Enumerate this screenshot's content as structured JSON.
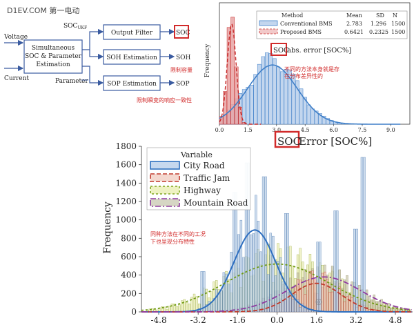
{
  "watermark": "D1EV.COM 第一电动",
  "block_diagram": {
    "inputs": [
      "Voltage",
      "Current"
    ],
    "estimator": [
      "Simultaneous",
      "SOC & Parameter",
      "Estimation"
    ],
    "soc_ukf_label": "SOC",
    "soc_ukf_sub": "UKF",
    "parameter_label": "Parameter",
    "blocks": [
      "Output Filter",
      "SOH Estimation",
      "SOP Estimation"
    ],
    "outputs": [
      "SOC",
      "SOH",
      "SOP"
    ],
    "notes": [
      "限制容量",
      "限制瞬变的响应一致性"
    ]
  },
  "top_chart": {
    "legend_headers": [
      "Method",
      "Mean",
      "SD",
      "N"
    ],
    "legend_rows": [
      {
        "name": "Conventional BMS",
        "mean": "2.783",
        "sd": "1.296",
        "n": "1500"
      },
      {
        "name": "Proposed BMS",
        "mean": "0.6421",
        "sd": "0.2325",
        "n": "1500"
      }
    ],
    "ylabel": "Frequency",
    "xlabel_highlight": "SOC",
    "xlabel_rest": "abs. error [SOC%]",
    "xticks": [
      "0.0",
      "1.5",
      "3.0",
      "4.5",
      "6.0",
      "7.5",
      "9.0"
    ],
    "note": [
      "不同的方法本身就是存",
      "在分布差异性的"
    ],
    "colors": {
      "conventional": "#3f7fc8",
      "proposed": "#c62828"
    }
  },
  "bottom_chart": {
    "title_highlight": "SOC",
    "title_rest": " Error [SOC%]",
    "ylabel": "Frequency",
    "yticks": [
      "0",
      "200",
      "400",
      "600",
      "800",
      "1000",
      "1200",
      "1400",
      "1600",
      "1800"
    ],
    "xticks": [
      "-4.8",
      "-3.2",
      "-1.6",
      "0.0",
      "1.6",
      "3.2",
      "4.8"
    ],
    "legend_title": "Variable",
    "legend": [
      "City Road",
      "Traffic Jam",
      "Highway",
      "Mountain Road"
    ],
    "note": [
      "同种方法在不同的工况",
      "下也呈现分布特性"
    ],
    "colors": {
      "city": "#2e6fc0",
      "traffic": "#c0392b",
      "highway": "#7fa51e",
      "mountain": "#8e3aa0"
    }
  },
  "chart_data": [
    {
      "type": "bar",
      "xlabel": "SOC abs. error [SOC%]",
      "ylabel": "Frequency",
      "xlim": [
        0,
        10
      ],
      "series": [
        {
          "name": "Conventional BMS",
          "mean": 2.783,
          "sd": 1.296,
          "n": 1500
        },
        {
          "name": "Proposed BMS",
          "mean": 0.6421,
          "sd": 0.2325,
          "n": 1500
        }
      ]
    },
    {
      "type": "bar",
      "title": "SOC Error [SOC%]",
      "ylabel": "Frequency",
      "ylim": [
        0,
        1800
      ],
      "xlim": [
        -5.5,
        5.5
      ],
      "series": [
        {
          "name": "City Road",
          "peak_x": -0.9,
          "peak_y": 890
        },
        {
          "name": "Traffic Jam",
          "peak_x": 1.6,
          "peak_y": 310
        },
        {
          "name": "Highway",
          "peak_x": 0.0,
          "peak_y": 520
        },
        {
          "name": "Mountain Road",
          "peak_x": 1.9,
          "peak_y": 380
        }
      ]
    }
  ]
}
